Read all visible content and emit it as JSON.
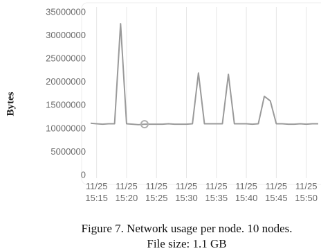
{
  "chart_data": {
    "type": "line",
    "y_label": "Bytes",
    "caption": [
      "Figure 7. Network usage per node. 10 nodes.",
      "File size: 1.1 GB"
    ],
    "x": [
      "11/25 15:14",
      "11/25 15:15",
      "11/25 15:16",
      "11/25 15:17",
      "11/25 15:18",
      "11/25 15:19",
      "11/25 15:20",
      "11/25 15:21",
      "11/25 15:22",
      "11/25 15:23",
      "11/25 15:24",
      "11/25 15:25",
      "11/25 15:26",
      "11/25 15:27",
      "11/25 15:28",
      "11/25 15:29",
      "11/25 15:30",
      "11/25 15:31",
      "11/25 15:32",
      "11/25 15:33",
      "11/25 15:34",
      "11/25 15:35",
      "11/25 15:36",
      "11/25 15:37",
      "11/25 15:38",
      "11/25 15:39",
      "11/25 15:40",
      "11/25 15:41",
      "11/25 15:42",
      "11/25 15:43",
      "11/25 15:44",
      "11/25 15:45",
      "11/25 15:46",
      "11/25 15:47",
      "11/25 15:48",
      "11/25 15:49",
      "11/25 15:50",
      "11/25 15:51",
      "11/25 15:52"
    ],
    "series": [
      {
        "color": "#9a9a9a",
        "values": [
          11200000,
          11100000,
          11000000,
          11100000,
          11100000,
          32600000,
          11100000,
          11000000,
          10900000,
          11000000,
          11000000,
          11000000,
          11000000,
          11100000,
          11000000,
          11000000,
          11000000,
          11100000,
          22000000,
          11100000,
          11100000,
          11100000,
          11100000,
          21700000,
          11100000,
          11100000,
          11100000,
          11000000,
          11100000,
          17000000,
          16000000,
          11100000,
          11100000,
          11000000,
          11000000,
          11100000,
          11000000,
          11100000,
          11100000
        ]
      }
    ],
    "highlight": {
      "x": "11/25 15:23",
      "value": 11000000,
      "color": "#b0b0b0"
    },
    "xlim": [
      "11/25 15:14",
      "11/25 15:52"
    ],
    "xticks": [
      "11/25 15:15",
      "11/25 15:20",
      "11/25 15:25",
      "11/25 15:30",
      "11/25 15:35",
      "11/25 15:40",
      "11/25 15:45",
      "11/25 15:50"
    ],
    "ylim": [
      0,
      35000000
    ],
    "yticks": [
      0,
      5000000,
      10000000,
      15000000,
      20000000,
      25000000,
      30000000,
      35000000
    ],
    "grid": true
  }
}
